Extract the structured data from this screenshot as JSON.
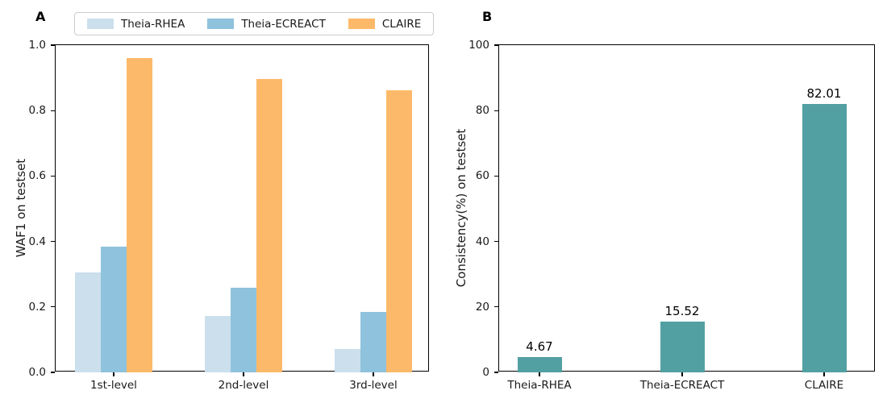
{
  "panels": [
    {
      "label": "A"
    },
    {
      "label": "B"
    }
  ],
  "chart_data": [
    {
      "type": "bar",
      "panel": "A",
      "title": "",
      "categories": [
        "1st-level",
        "2nd-level",
        "3rd-level"
      ],
      "series": [
        {
          "name": "Theia-RHEA",
          "color": "#cbdfec",
          "values": [
            0.305,
            0.172,
            0.071
          ]
        },
        {
          "name": "Theia-ECREACT",
          "color": "#8fc2dc",
          "values": [
            0.385,
            0.259,
            0.185
          ]
        },
        {
          "name": "CLAIRE",
          "color": "#fdb96a",
          "values": [
            0.96,
            0.897,
            0.861
          ]
        }
      ],
      "xlabel": "",
      "ylabel": "WAF1 on testset",
      "ylim": [
        0,
        1.0
      ],
      "yticks": [
        "0.0",
        "0.2",
        "0.4",
        "0.6",
        "0.8",
        "1.0"
      ],
      "grid": false,
      "legend_position": "top-center-outside"
    },
    {
      "type": "bar",
      "panel": "B",
      "title": "",
      "categories": [
        "Theia-RHEA",
        "Theia-ECREACT",
        "CLAIRE"
      ],
      "values": [
        4.67,
        15.52,
        82.01
      ],
      "value_labels": [
        "4.67",
        "15.52",
        "82.01"
      ],
      "bar_color": "#52a0a2",
      "xlabel": "",
      "ylabel": "Consistency(%) on testset",
      "ylim": [
        0,
        100
      ],
      "yticks": [
        "0",
        "20",
        "40",
        "60",
        "80",
        "100"
      ],
      "grid": false,
      "legend_position": "none"
    }
  ]
}
